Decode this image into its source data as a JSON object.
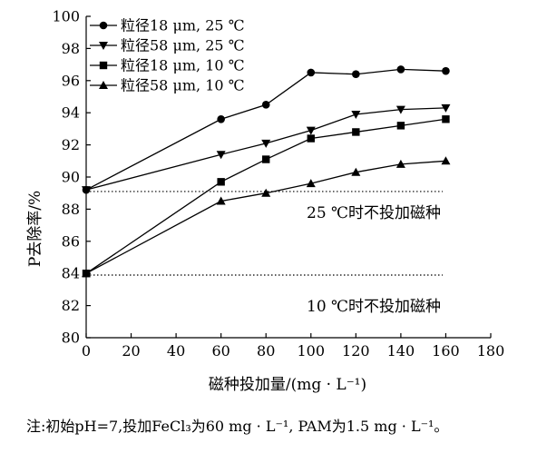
{
  "chart_data": {
    "type": "line",
    "x": [
      0,
      60,
      80,
      100,
      120,
      140,
      160
    ],
    "series": [
      {
        "name": "粒径18 μm, 25 ℃",
        "marker": "circle",
        "values": [
          89.2,
          93.6,
          94.5,
          96.5,
          96.4,
          96.7,
          96.6
        ]
      },
      {
        "name": "粒径58 μm, 25 ℃",
        "marker": "triangle-down",
        "values": [
          89.2,
          91.4,
          92.1,
          92.9,
          93.9,
          94.2,
          94.3
        ]
      },
      {
        "name": "粒径18 μm, 10 ℃",
        "marker": "square",
        "values": [
          84.0,
          89.7,
          91.1,
          92.4,
          92.8,
          93.2,
          93.6
        ]
      },
      {
        "name": "粒径58 μm, 10 ℃",
        "marker": "triangle-up",
        "values": [
          84.0,
          88.5,
          89.0,
          89.6,
          90.3,
          90.8,
          91.0
        ]
      }
    ],
    "xlabel": "磁种投加量/(mg · L⁻¹)",
    "ylabel": "P去除率/%",
    "xlim": [
      0,
      180
    ],
    "ylim": [
      80,
      100
    ],
    "xticks": [
      0,
      20,
      40,
      60,
      80,
      100,
      120,
      140,
      160,
      180
    ],
    "yticks": [
      80,
      82,
      84,
      86,
      88,
      90,
      92,
      94,
      96,
      98,
      100
    ],
    "grid": false,
    "legend_position": "top-left",
    "reference_lines": [
      {
        "y": 89.1,
        "style": "dotted",
        "label": "25 ℃时不投加磁种"
      },
      {
        "y": 83.9,
        "style": "dotted",
        "label": "10 ℃时不投加磁种"
      }
    ],
    "note": "注:初始pH=7,投加FeCl₃为60 mg · L⁻¹, PAM为1.5 mg · L⁻¹。"
  }
}
